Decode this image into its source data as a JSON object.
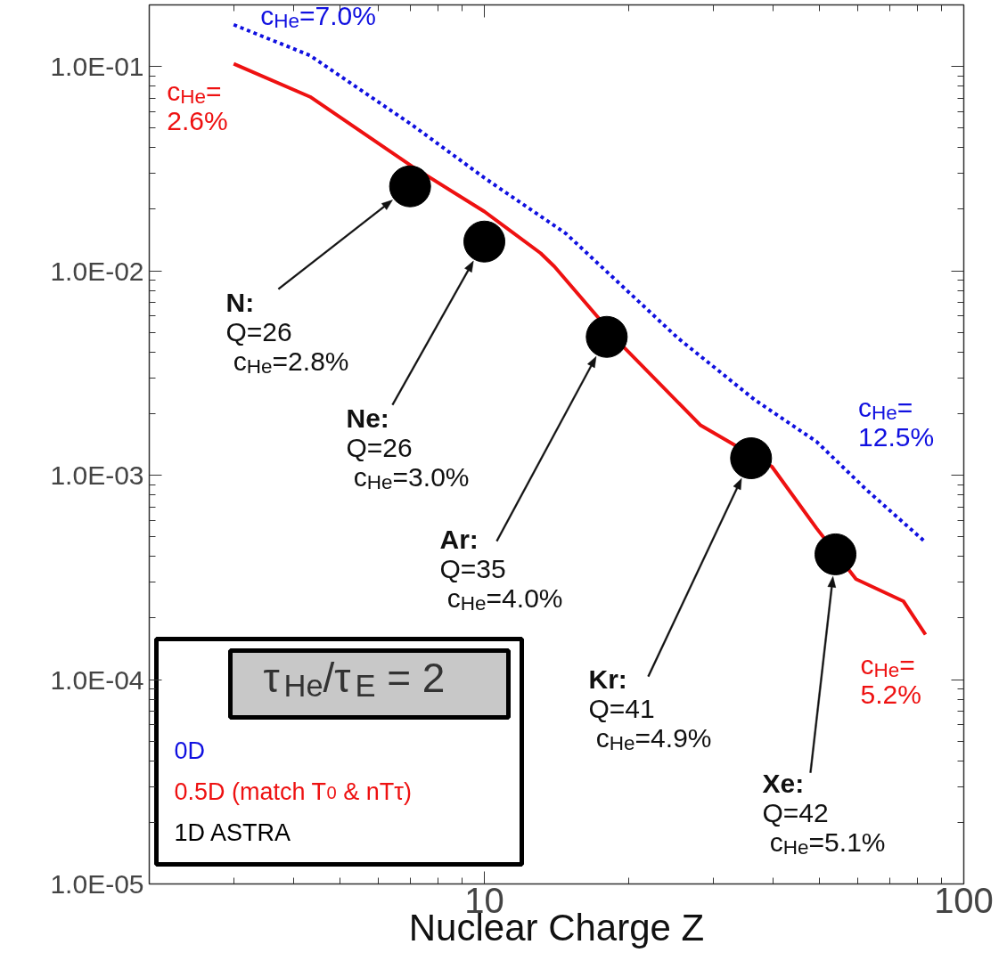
{
  "chart_data": {
    "type": "line",
    "xlabel": "Nuclear Charge Z",
    "legend_title": "τ$_{He}$/τ$_{E}$ = 2",
    "legend": "bottom left",
    "log": "xy",
    "grid": false,
    "xlim": [
      2,
      100
    ],
    "xticks": [
      10,
      100
    ],
    "ylim": [
      1e-05,
      0.2
    ],
    "yticks": [
      {
        "value": 1e-05,
        "label": "1.0E-05"
      },
      {
        "value": 0.0001,
        "label": "1.0E-04"
      },
      {
        "value": 0.001,
        "label": "1.0E-03"
      },
      {
        "value": 0.01,
        "label": "1.0E-02"
      },
      {
        "value": 0.1,
        "label": "1.0E-01"
      }
    ],
    "series": [
      {
        "name": "0D",
        "line_style": "dotted",
        "color": "#1010e0",
        "x": [
          3,
          4.33,
          7.07,
          10,
          14.8,
          25.3,
          36.7,
          49.3,
          62.6,
          83.2
        ],
        "values": [
          0.16,
          0.113,
          0.0517,
          0.0285,
          0.0152,
          0.0047,
          0.00233,
          0.00146,
          0.00085,
          0.00047
        ]
      },
      {
        "name": "0.5D (match T$_{0}$ & nTτ)",
        "line_style": "solid",
        "color": "#ee1111",
        "x": [
          3,
          4.33,
          7.07,
          10,
          13.1,
          14.0,
          19.3,
          28.2,
          39.8,
          49.3,
          59.6,
          74.8,
          83.2
        ],
        "values": [
          0.103,
          0.071,
          0.0324,
          0.0195,
          0.0122,
          0.0105,
          0.00436,
          0.00176,
          0.0011,
          0.00055,
          0.00031,
          0.000242,
          0.000166
        ]
      },
      {
        "name": "1D ASTRA",
        "type": "scatter",
        "marker": "circle",
        "color": "#000000",
        "x": [
          7,
          10,
          18,
          36,
          54
        ],
        "values": [
          0.0259,
          0.0139,
          0.00475,
          0.00121,
          0.00041
        ]
      }
    ],
    "annotations": [
      "N:\nQ=26\n c$_{He}$=2.8%",
      "Ne:\nQ=26\n c$_{He}$=3.0%",
      "Ar:\nQ=35\n c$_{He}$=4.0%",
      "Kr:\nQ=41\n c$_{He}$=4.9%",
      "Xe:\nQ=42\n c$_{He}$=5.1%",
      {
        "text": "c$_{He}$=7.0%",
        "x": 3,
        "y": 0.16
      },
      {
        "text": "c$_{He}$=\n2.6%",
        "x": 3,
        "y": 0.103
      },
      {
        "text": "c$_{He}$=\n12.5%",
        "x": 62.6,
        "y": 0.00085
      },
      {
        "text": "c$_{He}$=\n5.2%",
        "x": 83.2,
        "y": 0.000166
      }
    ]
  }
}
